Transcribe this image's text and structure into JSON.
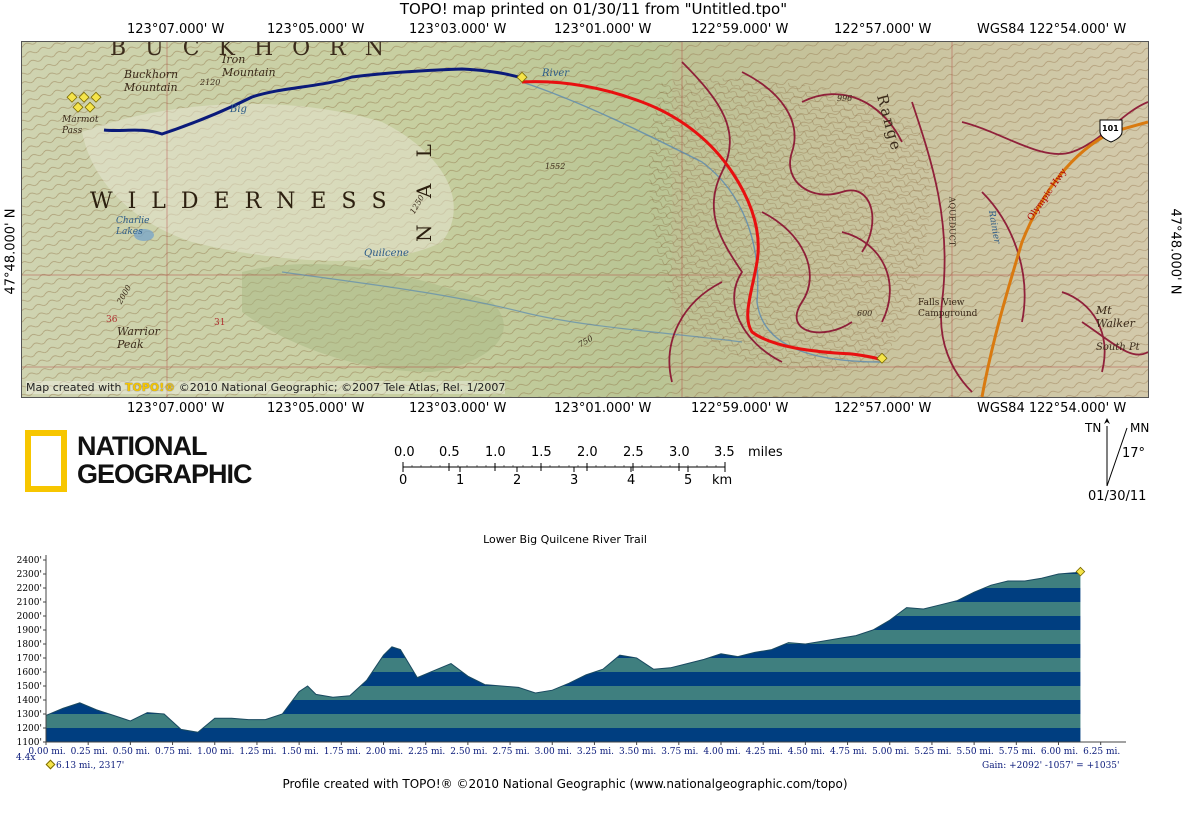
{
  "header": {
    "title": "TOPO! map printed on 01/30/11 from \"Untitled.tpo\""
  },
  "coords": {
    "top": [
      "123°07.000' W",
      "123°05.000' W",
      "123°03.000' W",
      "123°01.000' W",
      "122°59.000' W",
      "122°57.000' W",
      "WGS84 122°54.000' W"
    ],
    "bottom": [
      "123°07.000' W",
      "123°05.000' W",
      "123°03.000' W",
      "123°01.000' W",
      "122°59.000' W",
      "122°57.000' W",
      "WGS84 122°54.000' W"
    ],
    "left_lat": "47°48.000' N",
    "right_lat": "47°48.000' N"
  },
  "map": {
    "labels": {
      "buckhorn_wilderness": "B U C K H O R N",
      "wilderness": "W I L D E R N E S S",
      "buckhorn_mountain": "Buckhorn Mountain",
      "iron_mountain": "Iron Mountain",
      "marmot_pass": "Marmot Pass",
      "charlie_lakes": "Charlie Lakes",
      "warrior_peak": "Warrior Peak",
      "range": "Range",
      "river": "River",
      "big": "Big",
      "quilcene": "Quilcene",
      "falls_view": "Falls View Campground",
      "mt_walker": "Mt Walker",
      "south_pt": "South Pt",
      "olympic_hwy": "Olympic Hwy",
      "route_101": "101",
      "elev_2120": "2120",
      "elev_1552": "1552",
      "elev_996": "996",
      "elev_36": "36",
      "elev_31": "31",
      "elev_600": "600",
      "elev_1250": "1250",
      "elev_2000": "2000",
      "elev_750": "750",
      "aqueduct": "AQUEDUCT",
      "big_n": "N A L",
      "rainier_creek": "Rainier"
    },
    "credit_prefix": "Map created with ",
    "credit_brand": "TOPO!®",
    "credit_suffix": " ©2010 National Geographic; ©2007 Tele Atlas, Rel. 1/2007",
    "colors": {
      "trail_blue": "#0a1a7a",
      "trail_red": "#e81010",
      "road_orange": "#d97a10",
      "contour": "#8b6a3e",
      "roads_maroon": "#8a1030"
    }
  },
  "logo": {
    "line1": "NATIONAL",
    "line2": "GEOGRAPHIC",
    "color": "#f7c600"
  },
  "scale": {
    "miles_ticks": [
      "0.0",
      "0.5",
      "1.0",
      "1.5",
      "2.0",
      "2.5",
      "3.0",
      "3.5"
    ],
    "miles_unit": "miles",
    "km_ticks": [
      "0",
      "1",
      "2",
      "3",
      "4",
      "5"
    ],
    "km_unit": "km"
  },
  "north": {
    "tn": "TN",
    "mn": "MN",
    "declination": "17°",
    "date": "01/30/11"
  },
  "chart_data": {
    "type": "area",
    "title": "Lower Big Quilcene River Trail",
    "xlabel": "",
    "ylabel": "",
    "y_tick_labels": [
      "1100'",
      "1200'",
      "1300'",
      "1400'",
      "1500'",
      "1600'",
      "1700'",
      "1800'",
      "1900'",
      "2000'",
      "2100'",
      "2200'",
      "2300'",
      "2400'"
    ],
    "x_tick_labels": [
      "0.00 mi.",
      "0.25 mi.",
      "0.50 mi.",
      "0.75 mi.",
      "1.00 mi.",
      "1.25 mi.",
      "1.50 mi.",
      "1.75 mi.",
      "2.00 mi.",
      "2.25 mi.",
      "2.50 mi.",
      "2.75 mi.",
      "3.00 mi.",
      "3.25 mi.",
      "3.50 mi.",
      "3.75 mi.",
      "4.00 mi.",
      "4.25 mi.",
      "4.50 mi.",
      "4.75 mi.",
      "5.00 mi.",
      "5.25 mi.",
      "5.50 mi.",
      "5.75 mi.",
      "6.00 mi.",
      "6.25 mi."
    ],
    "xlim": [
      0,
      6.4
    ],
    "ylim": [
      1100,
      2400
    ],
    "x": [
      0.0,
      0.1,
      0.2,
      0.3,
      0.4,
      0.5,
      0.6,
      0.7,
      0.8,
      0.9,
      1.0,
      1.1,
      1.2,
      1.3,
      1.4,
      1.5,
      1.55,
      1.6,
      1.7,
      1.8,
      1.9,
      2.0,
      2.05,
      2.1,
      2.2,
      2.3,
      2.4,
      2.5,
      2.6,
      2.7,
      2.8,
      2.9,
      3.0,
      3.1,
      3.2,
      3.3,
      3.4,
      3.5,
      3.6,
      3.7,
      3.8,
      3.9,
      4.0,
      4.1,
      4.2,
      4.3,
      4.4,
      4.5,
      4.6,
      4.7,
      4.8,
      4.9,
      5.0,
      5.1,
      5.2,
      5.3,
      5.4,
      5.5,
      5.6,
      5.7,
      5.8,
      5.9,
      6.0,
      6.1,
      6.13
    ],
    "values": [
      1290,
      1340,
      1380,
      1330,
      1290,
      1250,
      1310,
      1300,
      1190,
      1170,
      1270,
      1270,
      1260,
      1260,
      1300,
      1460,
      1500,
      1440,
      1420,
      1430,
      1540,
      1720,
      1780,
      1760,
      1560,
      1610,
      1660,
      1570,
      1510,
      1500,
      1490,
      1450,
      1470,
      1520,
      1580,
      1620,
      1720,
      1700,
      1620,
      1630,
      1660,
      1690,
      1730,
      1710,
      1740,
      1760,
      1810,
      1800,
      1820,
      1840,
      1860,
      1900,
      1970,
      2060,
      2050,
      2080,
      2110,
      2170,
      2220,
      2250,
      2250,
      2270,
      2300,
      2310,
      2317
    ],
    "band_colors": [
      "#003a78",
      "#3a7a7a"
    ],
    "fill_light": "#3f7f7f",
    "fill_dark": "#003e80",
    "summary_left": "6.13 mi., 2317'",
    "summary_left_prefix": "4.4x",
    "summary_right": "Gain: +2092' -1057' = +1035'",
    "footer": "Profile created with TOPO!® ©2010 National Geographic (www.nationalgeographic.com/topo)"
  }
}
